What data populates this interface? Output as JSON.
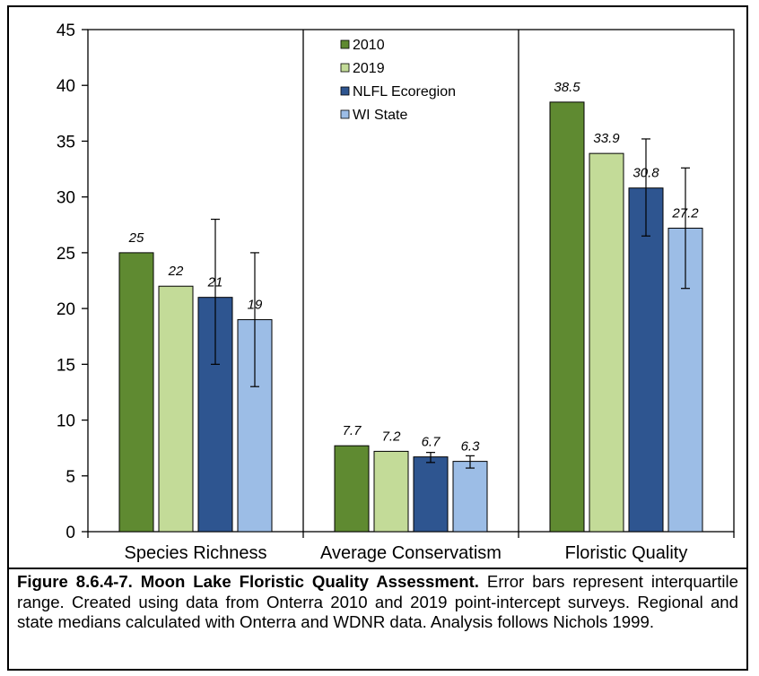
{
  "chart_data": {
    "type": "bar",
    "categories": [
      "Species Richness",
      "Average Conservatism",
      "Floristic Quality"
    ],
    "series": [
      {
        "name": "2010",
        "color": "#5f8a31",
        "values": [
          25,
          7.7,
          38.5
        ],
        "labels": [
          "25",
          "7.7",
          "38.5"
        ]
      },
      {
        "name": "2019",
        "color": "#c3db98",
        "values": [
          22,
          7.2,
          33.9
        ],
        "labels": [
          "22",
          "7.2",
          "33.9"
        ]
      },
      {
        "name": "NLFL Ecoregion",
        "color": "#2e5590",
        "values": [
          21,
          6.7,
          30.8
        ],
        "labels": [
          "21",
          "6.7",
          "30.8"
        ],
        "error_low": [
          15,
          6.2,
          26.5
        ],
        "error_high": [
          28,
          7.1,
          35.2
        ]
      },
      {
        "name": "WI State",
        "color": "#9cbde6",
        "values": [
          19,
          6.3,
          27.2
        ],
        "labels": [
          "19",
          "6.3",
          "27.2"
        ],
        "error_low": [
          13,
          5.7,
          21.8
        ],
        "error_high": [
          25,
          6.8,
          32.6
        ]
      }
    ],
    "ylim": [
      0,
      45
    ],
    "yticks": [
      0,
      5,
      10,
      15,
      20,
      25,
      30,
      35,
      40,
      45
    ],
    "grid": false,
    "legend_position": "top-center",
    "xlabel": "",
    "ylabel": ""
  },
  "caption": {
    "title": "Figure 8.6.4-7.  Moon Lake Floristic Quality Assessment.",
    "body": "  Error bars represent interquartile range. Created using data from Onterra 2010 and 2019 point-intercept surveys. Regional and state medians calculated with Onterra and WDNR data.  Analysis follows Nichols 1999."
  }
}
